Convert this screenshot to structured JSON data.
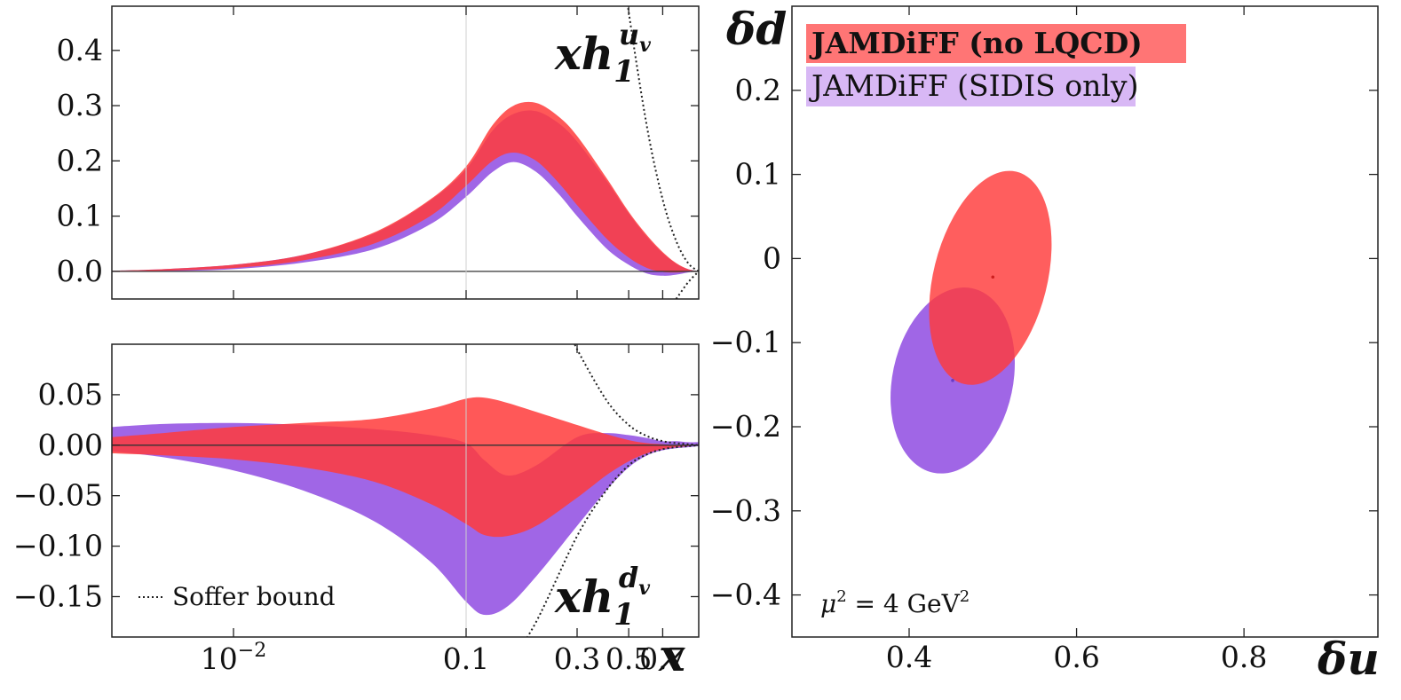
{
  "colors": {
    "red": "#ff3b3b",
    "purple": "#a066e6",
    "overlap": "#e8294f",
    "zero_line": "#333333",
    "soffer": "#222222"
  },
  "chart_data": [
    {
      "type": "area",
      "label": "xh1^{u_v}",
      "label_main": "xh",
      "label_sub": "1",
      "label_sup": "u",
      "label_sup_sub": "v",
      "xscale": "log",
      "xlim": [
        0.003,
        1.0
      ],
      "ylim": [
        -0.05,
        0.48
      ],
      "yticks": [
        "0.0",
        "0.1",
        "0.2",
        "0.3",
        "0.4"
      ],
      "ytick_values": [
        0.0,
        0.1,
        0.2,
        0.3,
        0.4
      ],
      "xticks": [],
      "series": [
        {
          "name": "JAMDiFF (no LQCD)",
          "color": "#ff3b3b",
          "x": [
            0.003,
            0.005,
            0.01,
            0.02,
            0.04,
            0.07,
            0.1,
            0.13,
            0.16,
            0.2,
            0.25,
            0.3,
            0.4,
            0.5,
            0.6,
            0.7,
            0.8,
            0.9,
            1.0
          ],
          "upper": [
            0.001,
            0.004,
            0.012,
            0.03,
            0.07,
            0.13,
            0.19,
            0.265,
            0.3,
            0.305,
            0.28,
            0.245,
            0.17,
            0.108,
            0.065,
            0.035,
            0.015,
            0.004,
            0.0
          ],
          "lower": [
            -0.001,
            0.001,
            0.006,
            0.02,
            0.05,
            0.1,
            0.155,
            0.2,
            0.215,
            0.2,
            0.16,
            0.12,
            0.06,
            0.025,
            0.006,
            -0.001,
            -0.002,
            -0.001,
            0.0
          ]
        },
        {
          "name": "JAMDiFF (SIDIS only)",
          "color": "#a066e6",
          "x": [
            0.003,
            0.005,
            0.01,
            0.02,
            0.04,
            0.07,
            0.1,
            0.13,
            0.16,
            0.2,
            0.25,
            0.3,
            0.4,
            0.5,
            0.6,
            0.7,
            0.8,
            0.9,
            1.0
          ],
          "upper": [
            0.001,
            0.004,
            0.012,
            0.03,
            0.068,
            0.128,
            0.185,
            0.255,
            0.285,
            0.29,
            0.268,
            0.235,
            0.165,
            0.105,
            0.062,
            0.033,
            0.014,
            0.004,
            0.0
          ],
          "lower": [
            -0.001,
            0.0,
            0.004,
            0.016,
            0.04,
            0.085,
            0.135,
            0.18,
            0.198,
            0.18,
            0.14,
            0.1,
            0.042,
            0.012,
            -0.004,
            -0.008,
            -0.006,
            -0.002,
            0.0
          ]
        }
      ],
      "soffer_upper": {
        "x": [
          0.45,
          0.5,
          0.6,
          0.7,
          0.8,
          0.9,
          1.0
        ],
        "y": [
          0.62,
          0.47,
          0.26,
          0.13,
          0.055,
          0.015,
          0.0
        ]
      },
      "soffer_lower": {
        "x": [
          0.8,
          0.9,
          1.0
        ],
        "y": [
          -0.05,
          -0.02,
          0.0
        ]
      }
    },
    {
      "type": "area",
      "label": "xh1^{d_v}",
      "label_main": "xh",
      "label_sub": "1",
      "label_sup": "d",
      "label_sup_sub": "v",
      "xscale": "log",
      "xlim": [
        0.003,
        1.0
      ],
      "ylim": [
        -0.19,
        0.1
      ],
      "yticks": [
        "0.05",
        "0.00",
        "−0.05",
        "−0.10",
        "−0.15"
      ],
      "ytick_values": [
        0.05,
        0.0,
        -0.05,
        -0.1,
        -0.15
      ],
      "xticks": [
        "10",
        "0.1",
        "0.3",
        "0.5",
        "0.7"
      ],
      "xtick_values": [
        0.01,
        0.1,
        0.3,
        0.5,
        0.7
      ],
      "xtick_first_exponent": "−2",
      "xlabel": "x",
      "annotation": "Soffer bound",
      "series": [
        {
          "name": "JAMDiFF (no LQCD)",
          "color": "#ff3b3b",
          "x": [
            0.003,
            0.005,
            0.01,
            0.02,
            0.04,
            0.07,
            0.1,
            0.12,
            0.15,
            0.2,
            0.3,
            0.4,
            0.5,
            0.6,
            0.7,
            0.8,
            0.9,
            1.0
          ],
          "upper": [
            0.008,
            0.012,
            0.018,
            0.022,
            0.026,
            0.036,
            0.046,
            0.047,
            0.042,
            0.033,
            0.02,
            0.011,
            0.005,
            0.002,
            0.001,
            0.0,
            0.0,
            0.0
          ],
          "lower": [
            -0.008,
            -0.01,
            -0.014,
            -0.022,
            -0.036,
            -0.058,
            -0.078,
            -0.089,
            -0.09,
            -0.08,
            -0.052,
            -0.03,
            -0.016,
            -0.008,
            -0.004,
            -0.002,
            -0.001,
            0.0
          ]
        },
        {
          "name": "JAMDiFF (SIDIS only)",
          "color": "#a066e6",
          "x": [
            0.003,
            0.005,
            0.01,
            0.02,
            0.04,
            0.07,
            0.1,
            0.12,
            0.15,
            0.2,
            0.3,
            0.4,
            0.5,
            0.6,
            0.7,
            0.8,
            0.9,
            1.0
          ],
          "upper": [
            0.018,
            0.021,
            0.022,
            0.02,
            0.016,
            0.01,
            0.002,
            -0.015,
            -0.03,
            -0.02,
            0.008,
            0.012,
            0.01,
            0.007,
            0.004,
            0.004,
            0.003,
            0.003
          ],
          "lower": [
            -0.006,
            -0.012,
            -0.025,
            -0.045,
            -0.075,
            -0.115,
            -0.155,
            -0.168,
            -0.16,
            -0.13,
            -0.08,
            -0.045,
            -0.022,
            -0.01,
            -0.005,
            -0.003,
            -0.002,
            -0.001
          ]
        }
      ],
      "soffer_upper": {
        "x": [
          0.27,
          0.3,
          0.4,
          0.5,
          0.6,
          0.7,
          0.8,
          0.9,
          1.0
        ],
        "y": [
          0.12,
          0.095,
          0.045,
          0.02,
          0.009,
          0.004,
          0.002,
          0.001,
          0.0
        ]
      },
      "soffer_lower": {
        "x": [
          0.15,
          0.2,
          0.3,
          0.4,
          0.5,
          0.6,
          0.7,
          0.8,
          0.9,
          1.0
        ],
        "y": [
          -0.22,
          -0.175,
          -0.09,
          -0.045,
          -0.02,
          -0.009,
          -0.004,
          -0.002,
          -0.001,
          0.0
        ]
      }
    },
    {
      "type": "scatter",
      "xlim": [
        0.26,
        0.96
      ],
      "ylim": [
        -0.45,
        0.3
      ],
      "xticks": [
        "0.4",
        "0.6",
        "0.8"
      ],
      "xtick_values": [
        0.4,
        0.6,
        0.8
      ],
      "yticks": [
        "0.2",
        "0.1",
        "0",
        "−0.1",
        "−0.2",
        "−0.3",
        "−0.4"
      ],
      "ytick_values": [
        0.2,
        0.1,
        0.0,
        -0.1,
        -0.2,
        -0.3,
        -0.4
      ],
      "xlabel": "δu",
      "ylabel": "δd",
      "annotation": "μ² = 4 GeV²",
      "annotation_main": "μ",
      "annotation_sup1": "2",
      "annotation_mid": " = 4 GeV",
      "annotation_sup2": "2",
      "legend": [
        {
          "label": "JAMDiFF (no LQCD)",
          "color": "#ff7575",
          "bold": true
        },
        {
          "label": "JAMDiFF (SIDIS only)",
          "color": "#d8b8f5",
          "bold": false
        }
      ],
      "legend_position": "top-left",
      "ellipses": [
        {
          "name": "JAMDiFF (SIDIS only)",
          "color": "#a066e6",
          "center": [
            0.452,
            -0.145
          ],
          "rx": 0.072,
          "ry": 0.112,
          "angle_deg": 12
        },
        {
          "name": "JAMDiFF (no LQCD)",
          "color": "#ff3b3b",
          "center": [
            0.497,
            -0.023
          ],
          "rx": 0.068,
          "ry": 0.13,
          "angle_deg": 14
        }
      ],
      "points": [
        {
          "name": "JAMDiFF (no LQCD)",
          "x": 0.5,
          "y": -0.022,
          "color": "#cc1f1f"
        },
        {
          "name": "JAMDiFF (SIDIS only)",
          "x": 0.452,
          "y": -0.145,
          "color": "#6a3bc4"
        }
      ]
    }
  ]
}
